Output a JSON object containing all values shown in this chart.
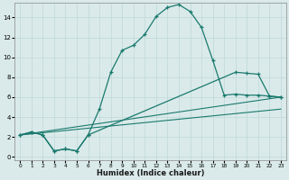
{
  "xlabel": "Humidex (Indice chaleur)",
  "bg_color": "#daeaea",
  "grid_color": "#c0d8d8",
  "line_color": "#1a7a6e",
  "xlim": [
    -0.5,
    23.5
  ],
  "ylim": [
    -0.3,
    15.5
  ],
  "xticks": [
    0,
    1,
    2,
    3,
    4,
    5,
    6,
    7,
    8,
    9,
    10,
    11,
    12,
    13,
    14,
    15,
    16,
    17,
    18,
    19,
    20,
    21,
    22,
    23
  ],
  "yticks": [
    0,
    2,
    4,
    6,
    8,
    10,
    12,
    14
  ],
  "line1_x": [
    0,
    1,
    2,
    3,
    4,
    5,
    6,
    7,
    8,
    9,
    10,
    11,
    12,
    13,
    14,
    15,
    16,
    17,
    18,
    19,
    20,
    21,
    22,
    23
  ],
  "line1_y": [
    2.2,
    2.5,
    2.2,
    0.6,
    0.8,
    0.6,
    2.2,
    4.8,
    8.5,
    10.7,
    11.2,
    12.3,
    14.1,
    15.0,
    15.3,
    14.6,
    13.0,
    9.7,
    6.2,
    6.3,
    6.2,
    6.2,
    6.1,
    6.0
  ],
  "line2_x": [
    0,
    1,
    2,
    3,
    4,
    5,
    6,
    19,
    20,
    21,
    22,
    23
  ],
  "line2_y": [
    2.2,
    2.5,
    2.2,
    0.6,
    0.8,
    0.6,
    2.2,
    8.5,
    8.4,
    8.3,
    6.1,
    6.0
  ],
  "line3_x": [
    0,
    23
  ],
  "line3_y": [
    2.2,
    6.0
  ],
  "line4_x": [
    0,
    23
  ],
  "line4_y": [
    2.2,
    4.8
  ]
}
